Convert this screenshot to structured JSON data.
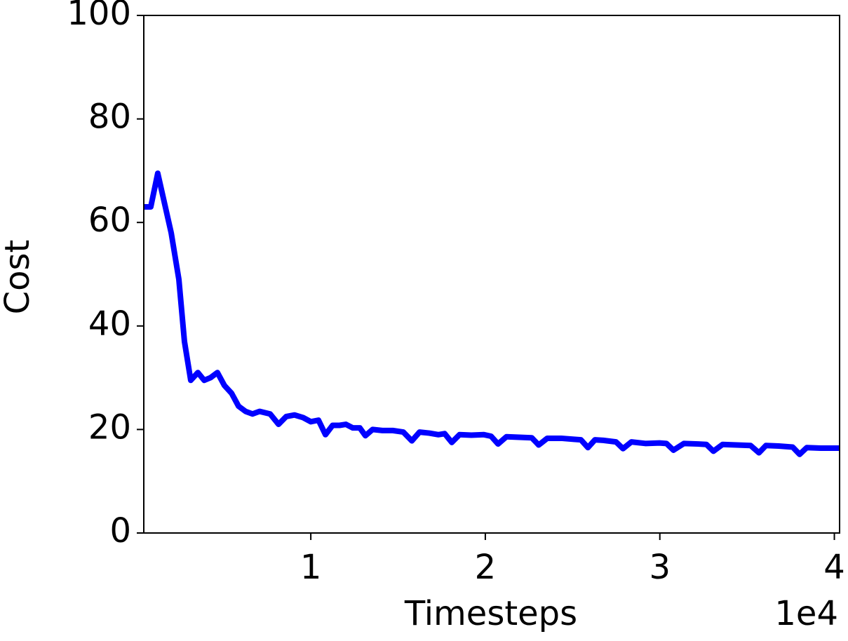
{
  "chart_data": {
    "type": "line",
    "xlabel": "Timesteps",
    "ylabel": "Cost",
    "x_offset_text": "1e4",
    "x": [
      430,
      830,
      1230,
      2000,
      2440,
      2760,
      3120,
      3530,
      3890,
      4250,
      4650,
      5050,
      5460,
      5860,
      6260,
      6660,
      7060,
      7670,
      8150,
      8590,
      9070,
      9560,
      10000,
      10440,
      10840,
      11250,
      11650,
      12010,
      12410,
      12810,
      13130,
      13540,
      14100,
      14700,
      15300,
      15790,
      16230,
      16790,
      17310,
      17670,
      18080,
      18520,
      19200,
      19920,
      20330,
      20730,
      21210,
      21940,
      22660,
      23060,
      23550,
      24350,
      25070,
      25480,
      25880,
      26280,
      26760,
      27490,
      27890,
      28370,
      29170,
      29980,
      30380,
      30780,
      31380,
      32190,
      32670,
      33070,
      33590,
      34400,
      35200,
      35680,
      36080,
      36810,
      37610,
      38010,
      38420,
      39220,
      40300
    ],
    "series": [
      {
        "color": "#0000ff",
        "values": [
          63,
          63,
          69.5,
          58,
          49,
          37,
          29.5,
          31,
          29.5,
          30,
          31,
          28.5,
          27,
          24.5,
          23.5,
          23,
          23.5,
          23,
          21,
          22.5,
          22.8,
          22.3,
          21.5,
          21.8,
          19,
          20.8,
          20.8,
          21,
          20.3,
          20.3,
          18.8,
          20,
          19.8,
          19.8,
          19.5,
          17.8,
          19.5,
          19.3,
          19,
          19.2,
          17.5,
          19,
          18.9,
          19,
          18.7,
          17.2,
          18.6,
          18.5,
          18.4,
          17,
          18.3,
          18.3,
          18.1,
          18,
          16.5,
          18,
          17.9,
          17.6,
          16.3,
          17.6,
          17.3,
          17.4,
          17.3,
          16,
          17.3,
          17.2,
          17.1,
          15.8,
          17.1,
          17,
          16.9,
          15.5,
          16.9,
          16.8,
          16.6,
          15.2,
          16.5,
          16.4,
          16.4
        ]
      }
    ],
    "xlim": [
      430,
      40300
    ],
    "ylim": [
      0,
      100
    ],
    "xticks": [
      {
        "value": 10000,
        "label": "1"
      },
      {
        "value": 20000,
        "label": "2"
      },
      {
        "value": 30000,
        "label": "3"
      },
      {
        "value": 40000,
        "label": "4"
      }
    ],
    "yticks": [
      0,
      20,
      40,
      60,
      80,
      100
    ],
    "grid": false
  }
}
